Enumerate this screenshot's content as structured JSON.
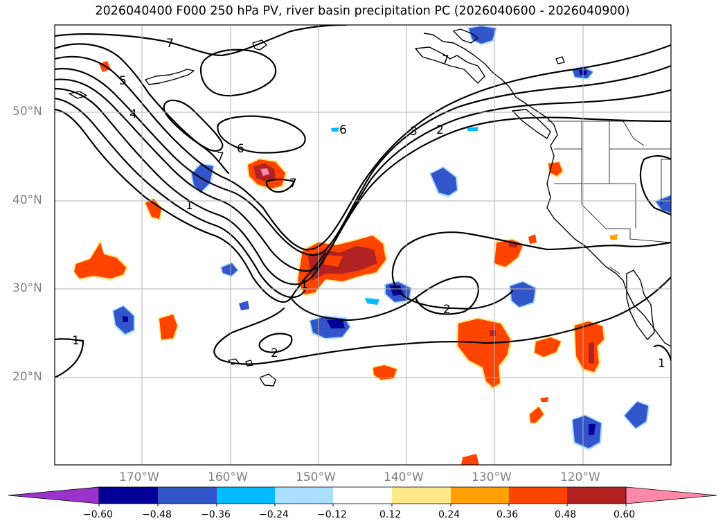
{
  "title": "2026040400 F000 250 hPa PV, river basin precipitation PC (2026040600 - 2026040900)",
  "colors": {
    "below_min": "#9933cc",
    "n060": "#000099",
    "n048": "#3355cc",
    "n036": "#00bbff",
    "n024": "#aadeff",
    "neutral": "#ffffff",
    "p012": "#ffe88a",
    "p024": "#ffa000",
    "p036": "#ff4400",
    "p048": "#b22222",
    "above_max": "#ff88aa"
  },
  "map": {
    "lat_labels": [
      "50°N",
      "40°N",
      "30°N",
      "20°N"
    ],
    "lon_labels": [
      "170°W",
      "160°W",
      "150°W",
      "140°W",
      "130°W",
      "120°W"
    ]
  },
  "pv_contour_labels": [
    "7",
    "5",
    "4",
    "7",
    "6",
    "7",
    "1",
    "6",
    "3",
    "2",
    "7",
    "1",
    "2",
    "2",
    "1",
    "1"
  ],
  "colorbar": {
    "ticks": [
      "−0.60",
      "−0.48",
      "−0.36",
      "−0.24",
      "−0.12",
      "0.12",
      "0.24",
      "0.36",
      "0.48",
      "0.60"
    ]
  },
  "chart_data": {
    "type": "heatmap",
    "title": "2026040400 F000 250 hPa PV, river basin precipitation PC (2026040600 - 2026040900)",
    "projection": "equirectangular",
    "lon_range": [
      -180,
      -110
    ],
    "lat_range": [
      10,
      60
    ],
    "field_filled": "river basin precipitation PC",
    "field_contour": "250 hPa PV",
    "color_levels": [
      -0.6,
      -0.48,
      -0.36,
      -0.24,
      -0.12,
      0.12,
      0.24,
      0.36,
      0.48,
      0.6
    ],
    "pv_contour_values": [
      1,
      2,
      3,
      4,
      5,
      6,
      7
    ]
  }
}
